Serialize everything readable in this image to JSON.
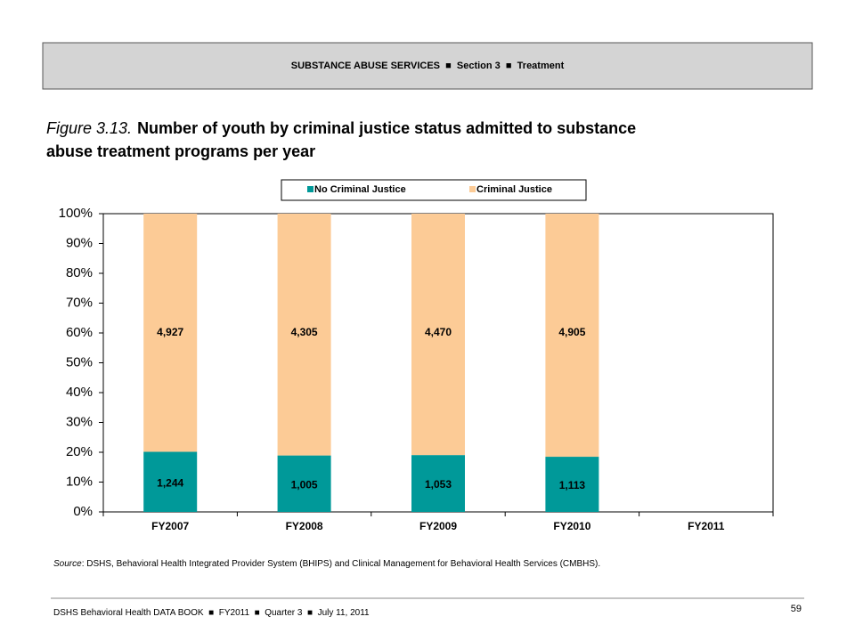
{
  "header": {
    "items": [
      "SUBSTANCE ABUSE SERVICES",
      "Section 3",
      "Treatment"
    ]
  },
  "figure_label": "Figure 3.13.",
  "title_lines": [
    "Number of youth by criminal justice status admitted to substance",
    "abuse treatment programs per year"
  ],
  "chart_data": {
    "type": "bar",
    "stacking": "percent",
    "categories": [
      "FY2007",
      "FY2008",
      "FY2009",
      "FY2010",
      "FY2011"
    ],
    "series": [
      {
        "name": "No Criminal Justice",
        "color": "#009999",
        "values": [
          1244,
          1005,
          1053,
          1113,
          null
        ],
        "value_labels": [
          "1,244",
          "1,005",
          "1,053",
          "1,113",
          null
        ]
      },
      {
        "name": "Criminal Justice",
        "color": "#fccb96",
        "values": [
          4927,
          4305,
          4470,
          4905,
          null
        ],
        "value_labels": [
          "4,927",
          "4,305",
          "4,470",
          "4,905",
          null
        ]
      }
    ],
    "ylim": [
      0,
      100
    ],
    "yticks": [
      {
        "value": 0,
        "label": "0%"
      },
      {
        "value": 10,
        "label": "10%"
      },
      {
        "value": 20,
        "label": "20%"
      },
      {
        "value": 30,
        "label": "30%"
      },
      {
        "value": 40,
        "label": "40%"
      },
      {
        "value": 50,
        "label": "50%"
      },
      {
        "value": 60,
        "label": "60%"
      },
      {
        "value": 70,
        "label": "70%"
      },
      {
        "value": 80,
        "label": "80%"
      },
      {
        "value": 90,
        "label": "90%"
      },
      {
        "value": 100,
        "label": "100%"
      }
    ],
    "legend": "top"
  },
  "source": {
    "label": "Source",
    "text": ": DSHS, Behavioral Health Integrated Provider System (BHIPS) and Clinical Management for Behavioral Health Services (CMBHS)."
  },
  "footer": {
    "items": [
      "DSHS Behavioral Health DATA BOOK",
      "FY2011",
      "Quarter 3",
      "July 11, 2011"
    ],
    "page": "59"
  }
}
